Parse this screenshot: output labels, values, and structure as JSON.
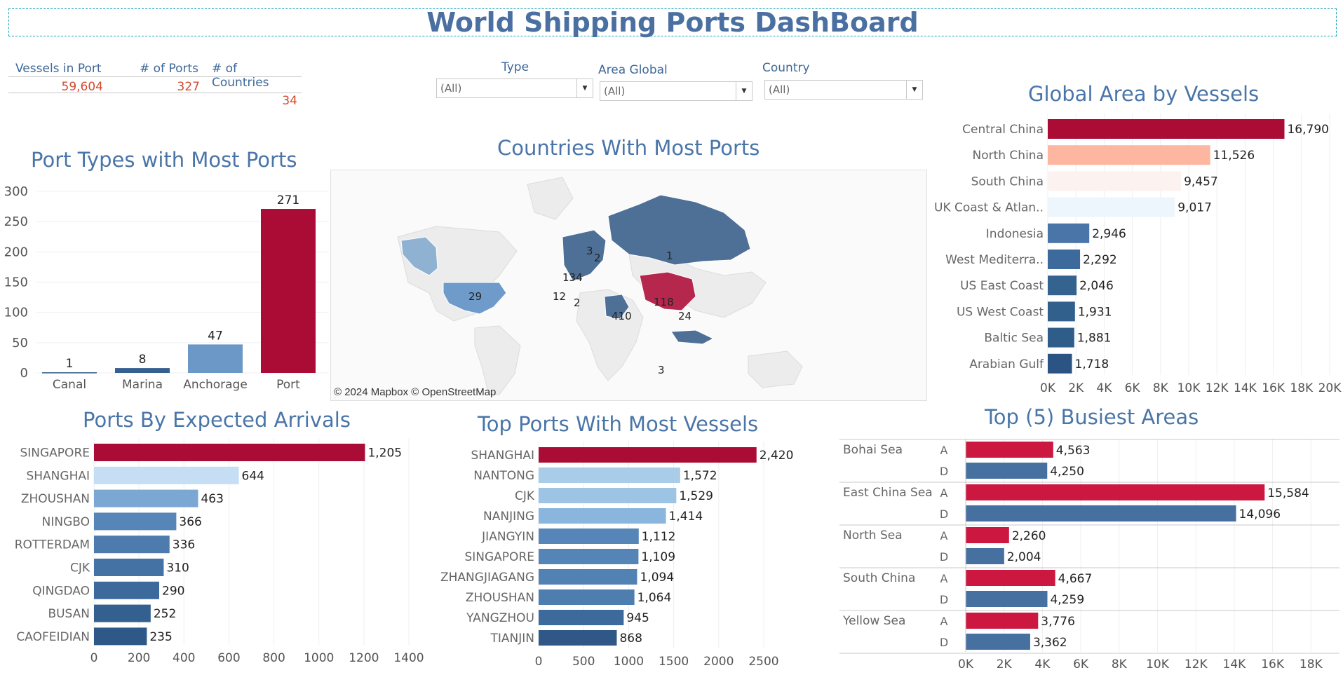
{
  "header": {
    "title": "World Shipping Ports DashBoard"
  },
  "kpis": [
    {
      "label": "Vessels in Port",
      "value": "59,604"
    },
    {
      "label": "# of Ports",
      "value": "327"
    },
    {
      "label": "# of Countries",
      "value": "34"
    }
  ],
  "filters": [
    {
      "label": "Type",
      "value": "(All)"
    },
    {
      "label": "Area Global",
      "value": "(All)"
    },
    {
      "label": "Country",
      "value": "(All)"
    }
  ],
  "colors": {
    "accent_red": "#aa0c35",
    "blue_dark": "#2f5a8a",
    "title_blue": "#4a75a8"
  },
  "map": {
    "title": "Countries With Most Ports",
    "credit": "© 2024 Mapbox © OpenStreetMap",
    "labels": [
      "1",
      "29",
      "118",
      "134",
      "3",
      "2",
      "12",
      "2",
      "410",
      "24",
      "3"
    ]
  },
  "chart_data": [
    {
      "id": "port_types",
      "type": "bar",
      "title": "Port Types with Most Ports",
      "categories": [
        "Canal",
        "Marina",
        "Anchorage",
        "Port"
      ],
      "values": [
        1,
        8,
        47,
        271
      ],
      "value_labels": [
        "1",
        "8",
        "47",
        "271"
      ],
      "yticks": [
        "0",
        "50",
        "100",
        "150",
        "200",
        "250",
        "300"
      ],
      "ylim": [
        0,
        300
      ],
      "colors": [
        "#2f5a8a",
        "#35608f",
        "#6b98c6",
        "#aa0c35"
      ]
    },
    {
      "id": "global_area",
      "type": "bar",
      "orientation": "horizontal",
      "title": "Global Area by Vessels",
      "categories": [
        "Central China",
        "North China",
        "South China",
        "UK Coast & Atlan..",
        "Indonesia",
        "West Mediterra..",
        "US East Coast",
        "US West Coast",
        "Baltic Sea",
        "Arabian Gulf"
      ],
      "values": [
        16790,
        11526,
        9457,
        9017,
        2946,
        2292,
        2046,
        1931,
        1881,
        1718
      ],
      "value_labels": [
        "16,790",
        "11,526",
        "9,457",
        "9,017",
        "2,946",
        "2,292",
        "2,046",
        "1,931",
        "1,881",
        "1,718"
      ],
      "xticks": [
        "0K",
        "2K",
        "4K",
        "6K",
        "8K",
        "10K",
        "12K",
        "14K",
        "16K",
        "18K",
        "20K"
      ],
      "xlim": [
        0,
        20000
      ],
      "colors": [
        "#aa0c35",
        "#fdb6a0",
        "#fcf2f0",
        "#eef6fd",
        "#4a75a8",
        "#3d6a9c",
        "#35638f",
        "#31608d",
        "#2f5d8a",
        "#2b5485"
      ]
    },
    {
      "id": "expected_arrivals",
      "type": "bar",
      "orientation": "horizontal",
      "title": "Ports By Expected Arrivals",
      "categories": [
        "SINGAPORE",
        "SHANGHAI",
        "ZHOUSHAN",
        "NINGBO",
        "ROTTERDAM",
        "CJK",
        "QINGDAO",
        "BUSAN",
        "CAOFEIDIAN"
      ],
      "values": [
        1205,
        644,
        463,
        366,
        336,
        310,
        290,
        252,
        235
      ],
      "value_labels": [
        "1,205",
        "644",
        "463",
        "366",
        "336",
        "310",
        "290",
        "252",
        "235"
      ],
      "xticks": [
        "0",
        "200",
        "400",
        "600",
        "800",
        "1000",
        "1200",
        "1400"
      ],
      "xlim": [
        0,
        1400
      ],
      "colors": [
        "#aa0c35",
        "#c5def3",
        "#7ba7d3",
        "#5685b8",
        "#4d7bae",
        "#4472a5",
        "#3d6a9c",
        "#34608f",
        "#2e5887"
      ]
    },
    {
      "id": "most_vessels",
      "type": "bar",
      "orientation": "horizontal",
      "title": "Top Ports With Most Vessels",
      "categories": [
        "SHANGHAI",
        "NANTONG",
        "CJK",
        "NANJING",
        "JIANGYIN",
        "SINGAPORE",
        "ZHANGJIAGANG",
        "ZHOUSHAN",
        "YANGZHOU",
        "TIANJIN"
      ],
      "values": [
        2420,
        1572,
        1529,
        1414,
        1112,
        1109,
        1094,
        1064,
        945,
        868
      ],
      "value_labels": [
        "2,420",
        "1,572",
        "1,529",
        "1,414",
        "1,112",
        "1,109",
        "1,094",
        "1,064",
        "945",
        "868"
      ],
      "xticks": [
        "0",
        "500",
        "1000",
        "1500",
        "2000",
        "2500"
      ],
      "xlim": [
        0,
        2500
      ],
      "colors": [
        "#aa0c35",
        "#a9cce8",
        "#9dc4e5",
        "#8ab6de",
        "#5685b8",
        "#5584b7",
        "#5281b4",
        "#4e7db0",
        "#3d6a9c",
        "#2f5887"
      ]
    },
    {
      "id": "busiest_areas",
      "type": "bar",
      "orientation": "horizontal",
      "title": "Top (5) Busiest Areas",
      "groups": [
        "Bohai Sea",
        "East China Sea",
        "North Sea",
        "South China",
        "Yellow Sea"
      ],
      "series": [
        {
          "name": "A",
          "values": [
            4563,
            15584,
            2260,
            4667,
            3776
          ],
          "value_labels": [
            "4,563",
            "15,584",
            "2,260",
            "4,667",
            "3,776"
          ],
          "color": "#cc1840"
        },
        {
          "name": "D",
          "values": [
            4250,
            14096,
            2004,
            4259,
            3362
          ],
          "value_labels": [
            "4,250",
            "14,096",
            "2,004",
            "4,259",
            "3,362"
          ],
          "color": "#45709f"
        }
      ],
      "xticks": [
        "0K",
        "2K",
        "4K",
        "6K",
        "8K",
        "10K",
        "12K",
        "14K",
        "16K",
        "18K"
      ],
      "xlim": [
        0,
        18500
      ]
    }
  ]
}
